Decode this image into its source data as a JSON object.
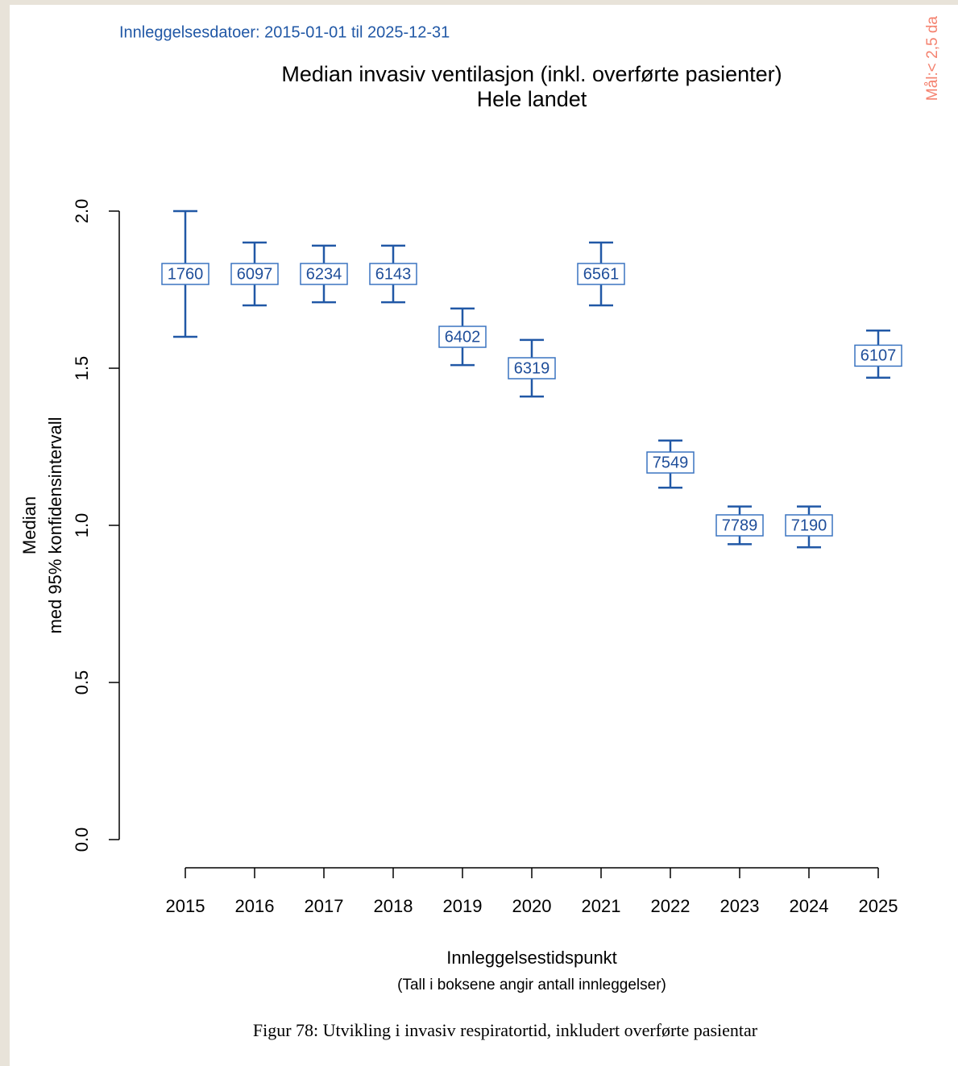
{
  "chart_data": {
    "type": "errorbar",
    "annotation": "Innleggelsesdatoer: 2015-01-01 til 2025-12-31",
    "target_note": "Mål:< 2,5 da",
    "title": "Median invasiv ventilasjon (inkl. overførte pasienter)",
    "subtitle": "Hele landet",
    "y_label": [
      "Median",
      "med 95% konfidensintervall"
    ],
    "x_label": "Innleggelsestidspunkt",
    "x_note": "(Tall i boksene angir antall innleggelser)",
    "categories": [
      "2015",
      "2016",
      "2017",
      "2018",
      "2019",
      "2020",
      "2021",
      "2022",
      "2023",
      "2024",
      "2025"
    ],
    "median": [
      1.8,
      1.8,
      1.8,
      1.8,
      1.6,
      1.5,
      1.8,
      1.2,
      1.0,
      1.0,
      1.54
    ],
    "lower": [
      1.6,
      1.7,
      1.71,
      1.71,
      1.51,
      1.41,
      1.7,
      1.12,
      0.94,
      0.93,
      1.47
    ],
    "upper": [
      2.0,
      1.9,
      1.89,
      1.89,
      1.69,
      1.59,
      1.9,
      1.27,
      1.06,
      1.06,
      1.62
    ],
    "n": [
      1760,
      6097,
      6234,
      6143,
      6402,
      6319,
      6561,
      7549,
      7789,
      7190,
      6107
    ],
    "color": "#2158a6",
    "ylim": [
      0,
      2
    ],
    "yticks": [
      {
        "value": 0,
        "label": "0.0"
      },
      {
        "value": 0.5,
        "label": "0.5"
      },
      {
        "value": 1,
        "label": "1.0"
      },
      {
        "value": 1.5,
        "label": "1.5"
      },
      {
        "value": 2,
        "label": "2.0"
      }
    ]
  },
  "caption": "Figur 78: Utvikling i invasiv respiratortid, inkludert overførte pasientar"
}
